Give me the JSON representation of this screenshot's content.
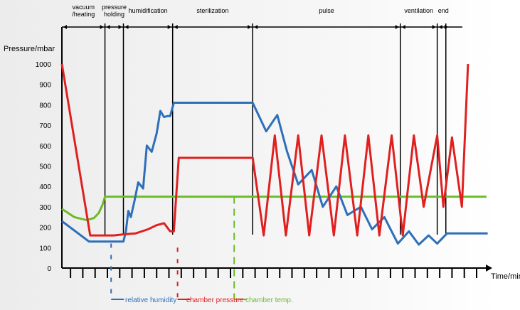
{
  "chart_data": {
    "type": "line",
    "title": "",
    "ylabel": "Pressure/mbar",
    "xlabel": "Time/min",
    "ylim": [
      0,
      1000
    ],
    "y_ticks": [
      "0",
      "100",
      "200",
      "300",
      "400",
      "500",
      "600",
      "700",
      "800",
      "900",
      "1000"
    ],
    "grid": false,
    "legend_position": "bottom",
    "x_tick_count": 33,
    "phases": [
      {
        "label_lines": [
          "vacuum",
          "/heating"
        ],
        "start": 0,
        "end": 3.5
      },
      {
        "label_lines": [
          "pressure",
          "holding"
        ],
        "start": 3.5,
        "end": 5
      },
      {
        "label_lines": [
          "humidification"
        ],
        "start": 5,
        "end": 9
      },
      {
        "label_lines": [
          "sterilization"
        ],
        "start": 9,
        "end": 15.5
      },
      {
        "label_lines": [
          "pulse"
        ],
        "start": 15.5,
        "end": 27.5
      },
      {
        "label_lines": [
          "ventilation"
        ],
        "start": 27.5,
        "end": 30.5
      },
      {
        "label_lines": [
          "end"
        ],
        "start": 30.5,
        "end": 31.5
      }
    ],
    "series": [
      {
        "name": "relative humidity",
        "color": "#2e6fba",
        "x": [
          0,
          2.2,
          4.6,
          5.0,
          5.2,
          5.4,
          5.6,
          5.9,
          6.2,
          6.6,
          6.9,
          7.3,
          7.7,
          8.0,
          8.3,
          8.6,
          8.8,
          9.1,
          9.5,
          15.5,
          16.6,
          17.5,
          18.3,
          19.2,
          20.3,
          21.2,
          22.3,
          23.2,
          24.3,
          25.2,
          26.2,
          27.3,
          28.2,
          29.0,
          29.8,
          30.5,
          31.3,
          32.3,
          33.2,
          34.6
        ],
        "y": [
          230,
          130,
          130,
          130,
          180,
          280,
          250,
          330,
          420,
          390,
          600,
          570,
          660,
          770,
          740,
          745,
          745,
          810,
          810,
          810,
          670,
          750,
          570,
          410,
          480,
          300,
          400,
          260,
          300,
          190,
          250,
          120,
          180,
          115,
          160,
          120,
          170,
          170,
          170,
          170
        ]
      },
      {
        "name": "chamber pressure",
        "color": "#e02020",
        "x": [
          0,
          2.3,
          3.0,
          3.5,
          4.2,
          5.0,
          6.0,
          7.0,
          7.7,
          8.3,
          8.8,
          9.1,
          9.5,
          10.0,
          15.5,
          16.4,
          17.3,
          18.2,
          19.2,
          20.1,
          21.1,
          22.1,
          23.0,
          24.0,
          24.9,
          25.8,
          26.8,
          27.7,
          28.6,
          29.4,
          30.5,
          31.0,
          31.7,
          32.5,
          33.0
        ],
        "y": [
          1000,
          160,
          160,
          160,
          160,
          165,
          170,
          190,
          210,
          220,
          180,
          180,
          540,
          540,
          540,
          160,
          650,
          160,
          650,
          160,
          650,
          160,
          650,
          160,
          650,
          160,
          650,
          160,
          650,
          300,
          650,
          300,
          640,
          300,
          1000
        ]
      },
      {
        "name": "chamber temp.",
        "color": "#6fba2c",
        "x": [
          0,
          1.0,
          2.0,
          2.6,
          3.0,
          3.3,
          3.5,
          34.5
        ],
        "y": [
          290,
          250,
          235,
          245,
          270,
          310,
          350,
          350
        ]
      }
    ],
    "phase_line_positions": [
      3.5,
      5.0,
      9.0,
      15.5,
      27.5,
      30.5,
      31.2
    ],
    "dashed_markers": [
      {
        "series": "relative humidity",
        "x": 4.0
      },
      {
        "series": "chamber pressure",
        "x": 9.4
      },
      {
        "series": "chamber temp.",
        "x": 14.0
      }
    ]
  }
}
